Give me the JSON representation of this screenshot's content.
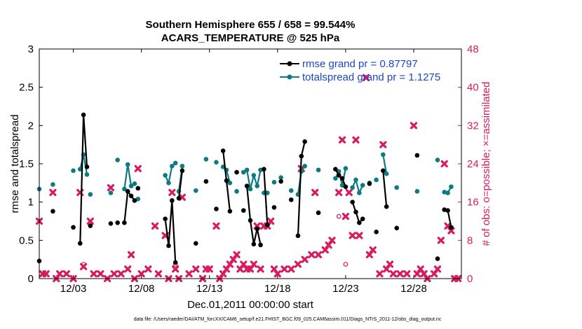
{
  "colors": {
    "rmse": "#000000",
    "spread": "#0c7a80",
    "obs": "#d81b60",
    "legend_text": "#1a47c8",
    "axis": "#000000"
  },
  "chart_data": {
    "type": "line",
    "title_line1": "Southern Hemisphere 655 / 658 = 99.544%",
    "title_line2": "ACARS_TEMPERATURE @ 525 hPa",
    "xlabel": "Dec.01,2011 00:00:00 start",
    "ylabel_left": "rmse and totalspread",
    "ylabel_right": "# of obs: o=possible; ×=assimilated",
    "footer": "data file: /Users/raeder/DAI/ATM_forcXX/CAM6_setup/f.e21.FHIST_BGC.f09_025.CAM6assim.011/Diags_NTrS_2011-12/obs_diag_output.nc",
    "xlim": [
      0.5,
      31.5
    ],
    "ylim_left": [
      0,
      3
    ],
    "ylim_right": [
      0,
      48
    ],
    "x_tick_values": [
      3,
      8,
      13,
      18,
      23,
      28
    ],
    "x_tick_labels": [
      "12/03",
      "12/08",
      "12/13",
      "12/18",
      "12/23",
      "12/28"
    ],
    "y_left_ticks": [
      0,
      0.5,
      1,
      1.5,
      2,
      2.5,
      3
    ],
    "y_left_tick_labels": [
      "0",
      "0.5",
      "1",
      "1.5",
      "2",
      "2.5",
      "3"
    ],
    "y_right_ticks": [
      0,
      8,
      16,
      24,
      32,
      40,
      48
    ],
    "y_right_tick_labels": [
      "0",
      "8",
      "16",
      "24",
      "32",
      "40",
      "48"
    ],
    "legend_location": "top-right",
    "series": [
      {
        "name": "rmse grand pr = 0.87797",
        "axis": "left",
        "style": "line-dots",
        "segments": [
          [
            [
              0.5,
              0.23
            ]
          ],
          [
            [
              1.5,
              0.88
            ]
          ],
          [
            [
              3.0,
              0.67
            ]
          ],
          [
            [
              3.5,
              0.46
            ],
            [
              3.75,
              2.14
            ],
            [
              4.0,
              1.46
            ]
          ],
          [
            [
              4.25,
              0.69
            ]
          ],
          [
            [
              5.75,
              0.72
            ]
          ],
          [
            [
              6.25,
              0.73
            ]
          ],
          [
            [
              6.75,
              0.73
            ],
            [
              7.0,
              1.14
            ],
            [
              7.25,
              1.08
            ],
            [
              7.5,
              1.02
            ]
          ],
          [
            [
              7.75,
              1.18
            ]
          ],
          [
            [
              9.75,
              0.78
            ],
            [
              10.0,
              0.43
            ],
            [
              10.25,
              1.02
            ],
            [
              10.5,
              0.21
            ]
          ],
          [
            [
              10.75,
              1.05
            ],
            [
              11.0,
              1.41
            ]
          ],
          [
            [
              12.0,
              0.46
            ]
          ],
          [
            [
              12.75,
              1.27
            ]
          ],
          [
            [
              13.5,
              0.91
            ]
          ],
          [
            [
              14.0,
              1.67
            ],
            [
              14.25,
              1.28
            ],
            [
              14.5,
              0.88
            ]
          ],
          [
            [
              15.0,
              1.39
            ]
          ],
          [
            [
              15.5,
              0.89
            ]
          ],
          [
            [
              15.75,
              1.21
            ],
            [
              16.0,
              0.76
            ],
            [
              16.25,
              0.45
            ],
            [
              16.5,
              0.65
            ],
            [
              16.75,
              0.44
            ]
          ],
          [
            [
              17.0,
              1.43
            ],
            [
              17.25,
              0.7
            ]
          ],
          [
            [
              17.75,
              0.93
            ]
          ],
          [
            [
              18.25,
              1.27
            ]
          ],
          [
            [
              19.0,
              1.03
            ]
          ],
          [
            [
              19.5,
              0.56
            ],
            [
              19.75,
              1.6
            ],
            [
              20.0,
              1.79
            ]
          ],
          [
            [
              21.0,
              0.86
            ]
          ],
          [
            [
              22.25,
              1.43
            ],
            [
              22.5,
              1.35
            ],
            [
              22.75,
              1.31
            ],
            [
              23.0,
              1.2
            ]
          ],
          [
            [
              23.5,
              1.0
            ],
            [
              23.75,
              0.87
            ],
            [
              24.0,
              0.73
            ],
            [
              24.25,
              0.78
            ]
          ],
          [
            [
              24.75,
              1.24
            ]
          ],
          [
            [
              25.25,
              0.61
            ]
          ],
          [
            [
              25.75,
              1.41
            ],
            [
              26.0,
              0.94
            ]
          ],
          [
            [
              26.75,
              0.66
            ]
          ],
          [
            [
              28.25,
              1.61
            ]
          ],
          [
            [
              29.75,
              0.26
            ]
          ],
          [
            [
              30.25,
              0.9
            ],
            [
              30.5,
              0.89
            ],
            [
              30.75,
              0.67
            ]
          ]
        ]
      },
      {
        "name": "totalspread grand pr = 1.1275",
        "axis": "left",
        "style": "line-dots",
        "segments": [
          [
            [
              0.5,
              1.17
            ]
          ],
          [
            [
              1.5,
              1.23
            ]
          ],
          [
            [
              3.0,
              1.41
            ]
          ],
          [
            [
              3.5,
              1.43
            ],
            [
              3.75,
              1.62
            ],
            [
              4.0,
              1.36
            ]
          ],
          [
            [
              4.25,
              1.1
            ]
          ],
          [
            [
              5.75,
              1.12
            ]
          ],
          [
            [
              6.25,
              1.55
            ]
          ],
          [
            [
              6.75,
              1.17
            ],
            [
              7.0,
              1.49
            ],
            [
              7.25,
              1.21
            ],
            [
              7.5,
              1.24
            ]
          ],
          [
            [
              7.75,
              1.04
            ]
          ],
          [
            [
              9.75,
              1.35
            ],
            [
              10.0,
              1.25
            ],
            [
              10.25,
              1.47
            ],
            [
              10.5,
              1.51
            ]
          ],
          [
            [
              10.75,
              1.14
            ],
            [
              11.0,
              1.47
            ]
          ],
          [
            [
              12.0,
              1.15
            ]
          ],
          [
            [
              12.75,
              1.56
            ]
          ],
          [
            [
              13.5,
              1.52
            ]
          ],
          [
            [
              14.0,
              1.46
            ],
            [
              14.25,
              1.42
            ],
            [
              14.5,
              1.25
            ]
          ],
          [
            [
              15.0,
              1.14
            ]
          ],
          [
            [
              15.5,
              1.39
            ]
          ],
          [
            [
              15.75,
              1.42
            ],
            [
              16.0,
              1.17
            ],
            [
              16.25,
              1.35
            ],
            [
              16.5,
              1.21
            ],
            [
              16.75,
              1.42
            ]
          ],
          [
            [
              17.0,
              1.12
            ],
            [
              17.25,
              1.12
            ]
          ],
          [
            [
              17.75,
              1.26
            ]
          ],
          [
            [
              18.25,
              1.32
            ]
          ],
          [
            [
              19.0,
              1.15
            ]
          ],
          [
            [
              19.5,
              1.1
            ],
            [
              19.75,
              1.4
            ],
            [
              20.0,
              1.47
            ]
          ],
          [
            [
              21.0,
              1.42
            ]
          ],
          [
            [
              22.25,
              1.31
            ],
            [
              22.5,
              1.4
            ],
            [
              22.75,
              1.22
            ],
            [
              23.0,
              1.44
            ]
          ],
          [
            [
              23.5,
              1.19
            ],
            [
              23.75,
              1.29
            ],
            [
              24.0,
              1.12
            ],
            [
              24.25,
              1.22
            ]
          ],
          [
            [
              24.75,
              1.25
            ]
          ],
          [
            [
              25.25,
              1.29
            ]
          ],
          [
            [
              25.75,
              1.62
            ],
            [
              26.0,
              1.37
            ]
          ],
          [
            [
              26.75,
              1.19
            ]
          ],
          [
            [
              28.25,
              1.14
            ]
          ],
          [
            [
              29.75,
              1.55
            ]
          ],
          [
            [
              30.25,
              1.13
            ],
            [
              30.5,
              1.12
            ],
            [
              30.75,
              1.2
            ]
          ]
        ]
      },
      {
        "name": "# obs assimilated",
        "axis": "right",
        "style": "x-markers",
        "points": [
          [
            0.5,
            12
          ],
          [
            0.75,
            1
          ],
          [
            1.0,
            1
          ],
          [
            1.5,
            18
          ],
          [
            1.75,
            0
          ],
          [
            2.0,
            1
          ],
          [
            2.5,
            1
          ],
          [
            3.0,
            0
          ],
          [
            3.5,
            18
          ],
          [
            3.75,
            2.5
          ],
          [
            4.25,
            12
          ],
          [
            4.5,
            1
          ],
          [
            5.0,
            1
          ],
          [
            5.5,
            0
          ],
          [
            5.75,
            19
          ],
          [
            6.0,
            1
          ],
          [
            6.5,
            1
          ],
          [
            7.0,
            2
          ],
          [
            7.25,
            5
          ],
          [
            7.5,
            0
          ],
          [
            7.75,
            23
          ],
          [
            8.0,
            1
          ],
          [
            8.5,
            2
          ],
          [
            9.0,
            11
          ],
          [
            9.25,
            1
          ],
          [
            9.75,
            9
          ],
          [
            10.0,
            0
          ],
          [
            10.25,
            18
          ],
          [
            10.5,
            2
          ],
          [
            10.75,
            0
          ],
          [
            11.0,
            17
          ],
          [
            11.5,
            1
          ],
          [
            12.0,
            2
          ],
          [
            12.5,
            0
          ],
          [
            12.75,
            2
          ],
          [
            13.0,
            2
          ],
          [
            13.5,
            11
          ],
          [
            13.75,
            0
          ],
          [
            14.0,
            1
          ],
          [
            14.25,
            2
          ],
          [
            14.5,
            3
          ],
          [
            14.75,
            4
          ],
          [
            15.0,
            5
          ],
          [
            15.25,
            2
          ],
          [
            15.5,
            3
          ],
          [
            15.75,
            2
          ],
          [
            16.0,
            2
          ],
          [
            16.25,
            3
          ],
          [
            16.5,
            11
          ],
          [
            16.75,
            2
          ],
          [
            17.0,
            11
          ],
          [
            17.25,
            11
          ],
          [
            17.5,
            12
          ],
          [
            17.75,
            2
          ],
          [
            18.0,
            1
          ],
          [
            18.5,
            2
          ],
          [
            19.0,
            2
          ],
          [
            19.5,
            3
          ],
          [
            19.75,
            23
          ],
          [
            20.0,
            4
          ],
          [
            20.5,
            5
          ],
          [
            20.75,
            18
          ],
          [
            21.0,
            5
          ],
          [
            21.5,
            6
          ],
          [
            21.75,
            7
          ],
          [
            22.0,
            8
          ],
          [
            22.5,
            18
          ],
          [
            22.75,
            29
          ],
          [
            23.0,
            13
          ],
          [
            23.25,
            18
          ],
          [
            23.5,
            9
          ],
          [
            23.75,
            29
          ],
          [
            24.0,
            9
          ],
          [
            24.5,
            42
          ],
          [
            24.75,
            5
          ],
          [
            25.0,
            6
          ],
          [
            25.5,
            1
          ],
          [
            25.75,
            28
          ],
          [
            26.0,
            2
          ],
          [
            26.25,
            3
          ],
          [
            26.5,
            1
          ],
          [
            27.0,
            1
          ],
          [
            27.5,
            1
          ],
          [
            28.0,
            32
          ],
          [
            28.25,
            1
          ],
          [
            28.5,
            2
          ],
          [
            28.75,
            1
          ],
          [
            29.0,
            0
          ],
          [
            29.5,
            1
          ],
          [
            29.75,
            2
          ],
          [
            30.0,
            8
          ],
          [
            30.25,
            24
          ],
          [
            30.5,
            11
          ],
          [
            30.75,
            10
          ],
          [
            31.0,
            0
          ],
          [
            31.25,
            0
          ]
        ]
      },
      {
        "name": "# obs possible",
        "axis": "right",
        "style": "o-markers",
        "points": [
          [
            3.75,
            3.0
          ],
          [
            10.5,
            3.0
          ],
          [
            22.5,
            13
          ],
          [
            23.0,
            3.0
          ]
        ]
      }
    ]
  }
}
